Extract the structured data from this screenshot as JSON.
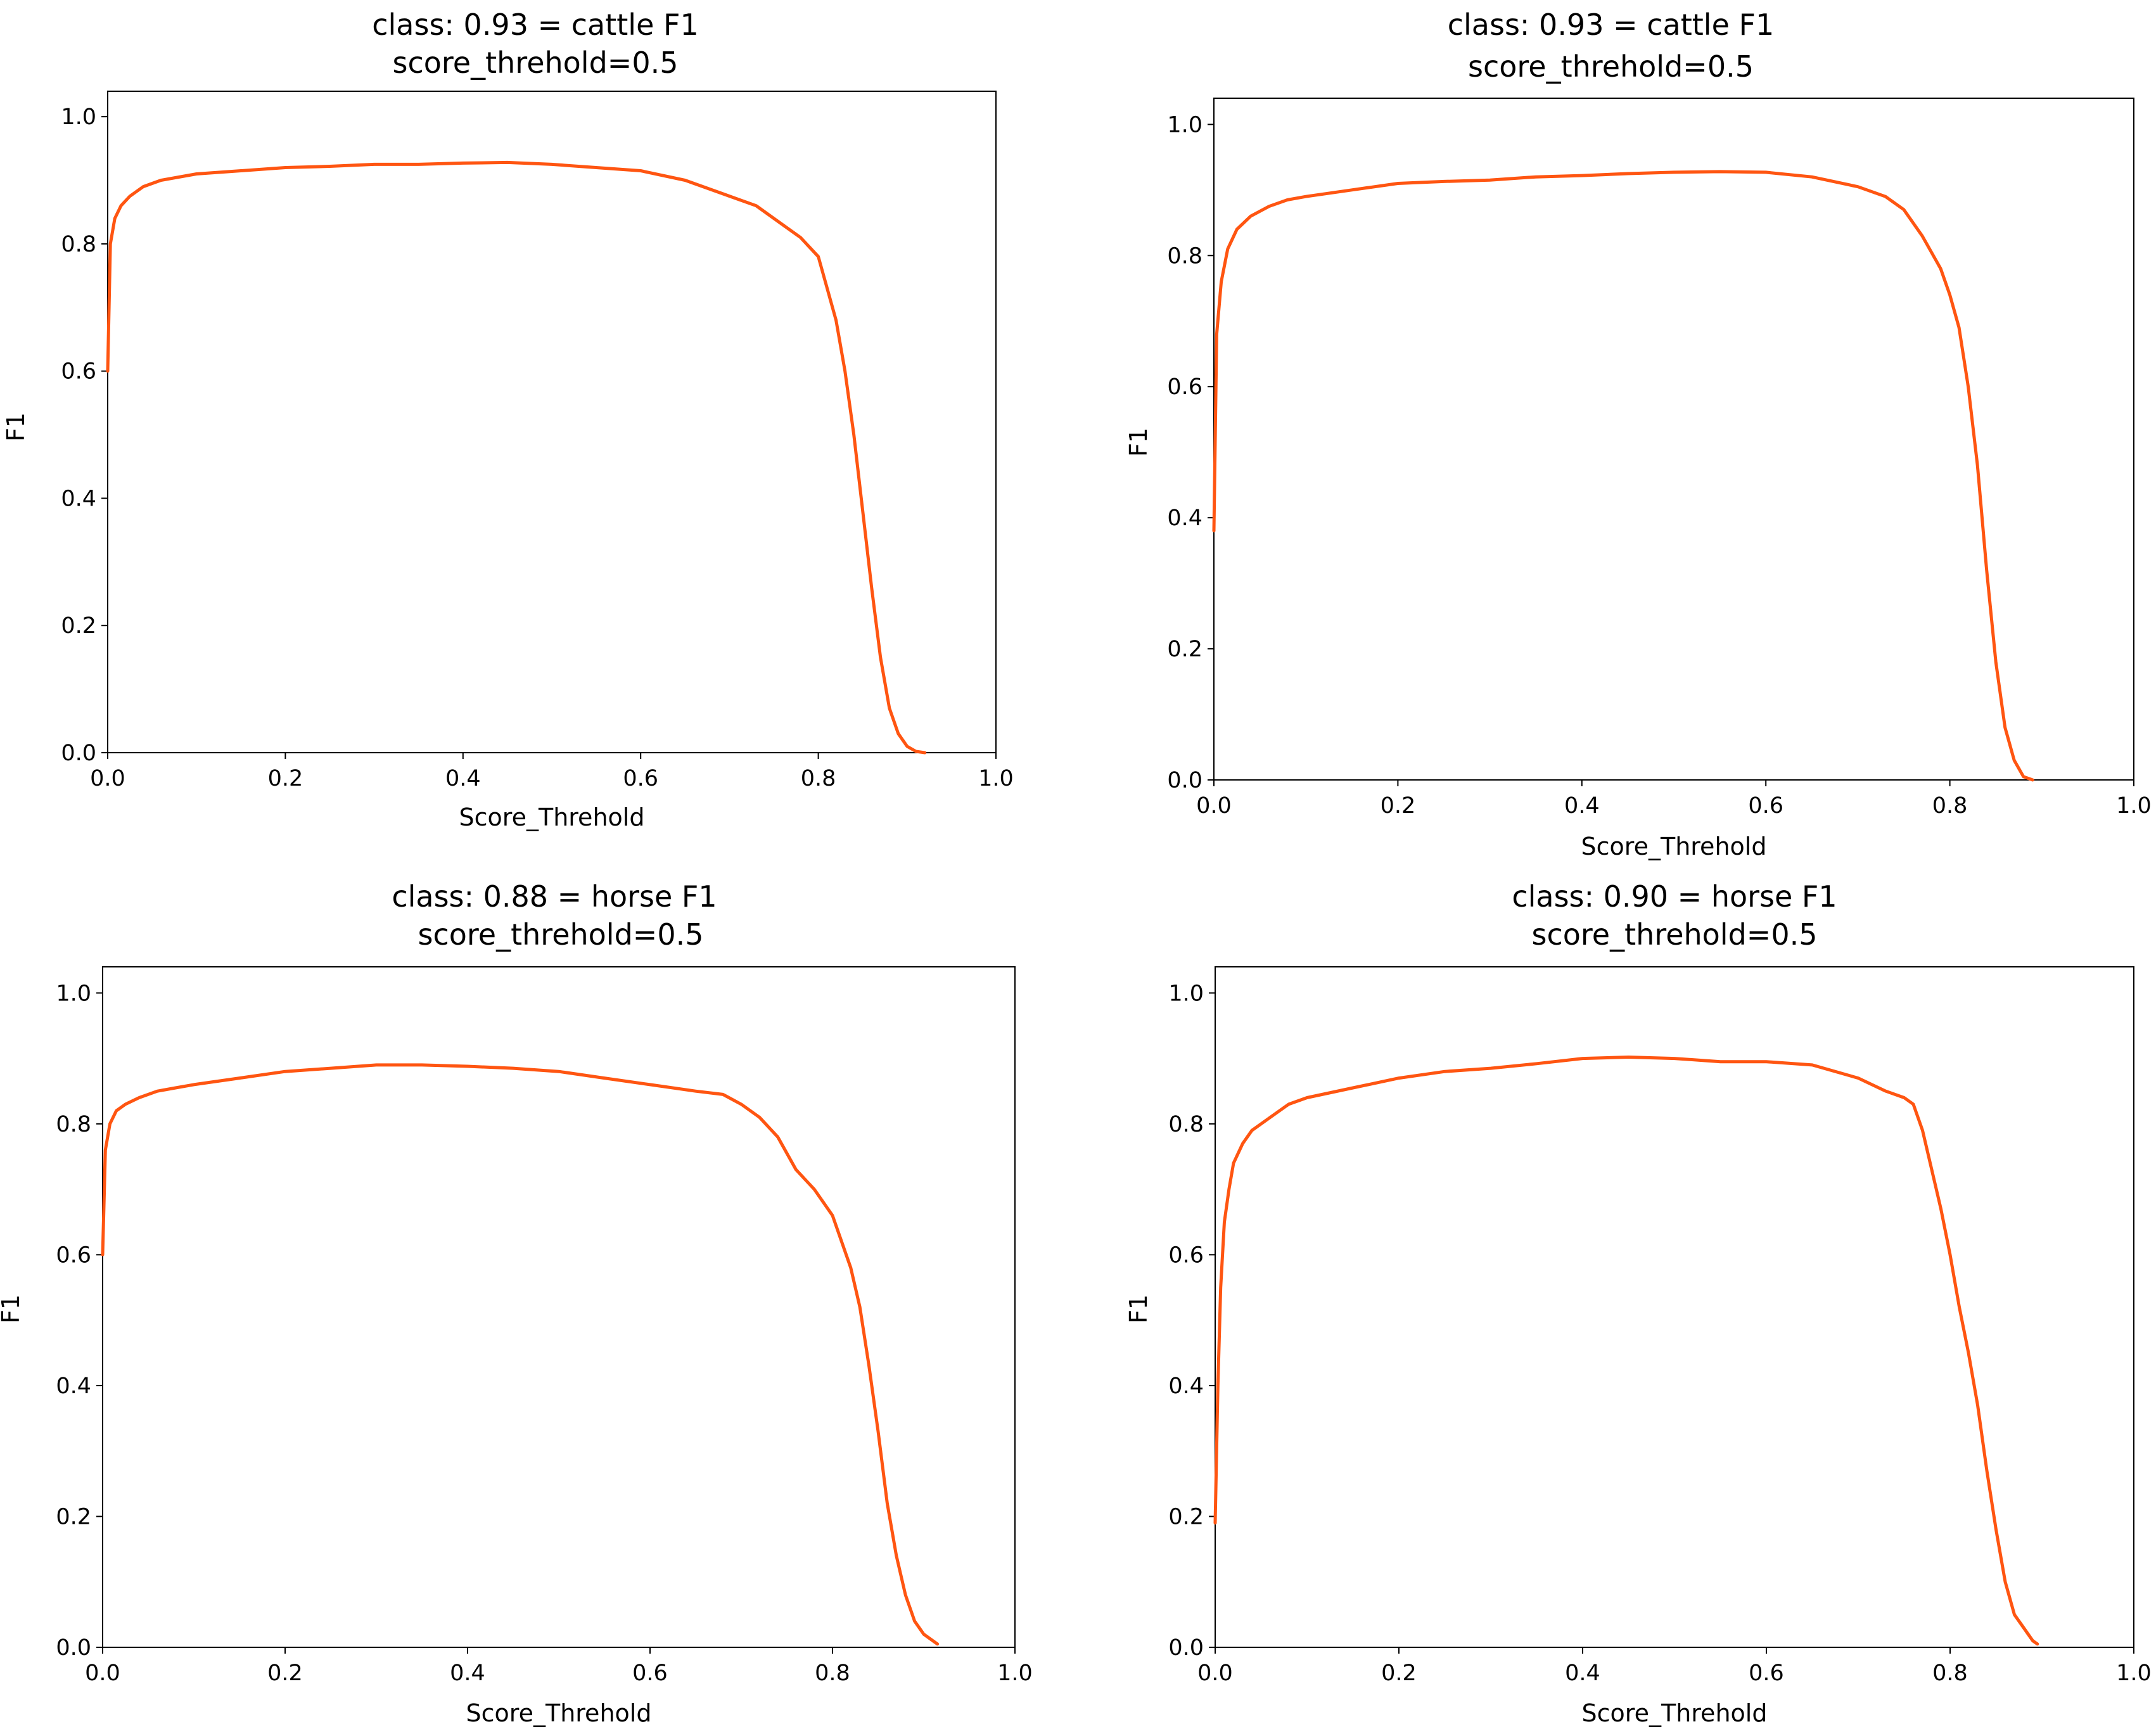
{
  "chart_data": [
    {
      "type": "line",
      "title": "class: 0.93 = cattle F1",
      "subtitle": "score_threhold=0.5",
      "xlabel": "Score_Threhold",
      "ylabel": "F1",
      "xlim": [
        0.0,
        1.0
      ],
      "ylim": [
        0.0,
        1.04
      ],
      "xticks": [
        "0.0",
        "0.2",
        "0.4",
        "0.6",
        "0.8",
        "1.0"
      ],
      "yticks": [
        "0.0",
        "0.2",
        "0.4",
        "0.6",
        "0.8",
        "1.0"
      ],
      "grid": false,
      "color": "#ff5511",
      "series": [
        {
          "x": [
            0.0,
            0.003,
            0.008,
            0.015,
            0.025,
            0.04,
            0.06,
            0.08,
            0.1,
            0.15,
            0.2,
            0.25,
            0.3,
            0.35,
            0.4,
            0.45,
            0.5,
            0.55,
            0.6,
            0.65,
            0.7,
            0.73,
            0.76,
            0.78,
            0.8,
            0.81,
            0.82,
            0.83,
            0.84,
            0.85,
            0.86,
            0.87,
            0.88,
            0.89,
            0.9,
            0.91,
            0.92
          ],
          "y": [
            0.6,
            0.8,
            0.84,
            0.86,
            0.875,
            0.89,
            0.9,
            0.905,
            0.91,
            0.915,
            0.92,
            0.922,
            0.925,
            0.925,
            0.927,
            0.928,
            0.925,
            0.92,
            0.915,
            0.9,
            0.875,
            0.86,
            0.83,
            0.81,
            0.78,
            0.73,
            0.68,
            0.6,
            0.5,
            0.38,
            0.26,
            0.15,
            0.07,
            0.03,
            0.01,
            0.002,
            0.0
          ]
        }
      ]
    },
    {
      "type": "line",
      "title": "class: 0.93 = cattle F1",
      "subtitle": "score_threhold=0.5",
      "xlabel": "Score_Threhold",
      "ylabel": "F1",
      "xlim": [
        0.0,
        1.0
      ],
      "ylim": [
        0.0,
        1.04
      ],
      "xticks": [
        "0.0",
        "0.2",
        "0.4",
        "0.6",
        "0.8",
        "1.0"
      ],
      "yticks": [
        "0.0",
        "0.2",
        "0.4",
        "0.6",
        "0.8",
        "1.0"
      ],
      "grid": false,
      "color": "#ff5511",
      "series": [
        {
          "x": [
            0.0,
            0.003,
            0.008,
            0.015,
            0.025,
            0.04,
            0.06,
            0.08,
            0.1,
            0.15,
            0.2,
            0.25,
            0.3,
            0.35,
            0.4,
            0.45,
            0.5,
            0.55,
            0.6,
            0.65,
            0.7,
            0.73,
            0.75,
            0.77,
            0.79,
            0.8,
            0.81,
            0.82,
            0.83,
            0.84,
            0.85,
            0.86,
            0.87,
            0.88,
            0.89
          ],
          "y": [
            0.38,
            0.68,
            0.76,
            0.81,
            0.84,
            0.86,
            0.875,
            0.885,
            0.89,
            0.9,
            0.91,
            0.913,
            0.915,
            0.92,
            0.922,
            0.925,
            0.927,
            0.928,
            0.927,
            0.92,
            0.905,
            0.89,
            0.87,
            0.83,
            0.78,
            0.74,
            0.69,
            0.6,
            0.48,
            0.32,
            0.18,
            0.08,
            0.03,
            0.005,
            0.0
          ]
        }
      ]
    },
    {
      "type": "line",
      "title": "class: 0.88 = horse F1",
      "subtitle": "score_threhold=0.5",
      "xlabel": "Score_Threhold",
      "ylabel": "F1",
      "xlim": [
        0.0,
        1.0
      ],
      "ylim": [
        0.0,
        1.04
      ],
      "xticks": [
        "0.0",
        "0.2",
        "0.4",
        "0.6",
        "0.8",
        "1.0"
      ],
      "yticks": [
        "0.0",
        "0.2",
        "0.4",
        "0.6",
        "0.8",
        "1.0"
      ],
      "grid": false,
      "color": "#ff5511",
      "series": [
        {
          "x": [
            0.0,
            0.003,
            0.008,
            0.015,
            0.025,
            0.04,
            0.06,
            0.08,
            0.1,
            0.15,
            0.2,
            0.25,
            0.3,
            0.35,
            0.4,
            0.45,
            0.5,
            0.55,
            0.6,
            0.65,
            0.68,
            0.7,
            0.72,
            0.74,
            0.76,
            0.78,
            0.8,
            0.82,
            0.83,
            0.84,
            0.85,
            0.86,
            0.87,
            0.88,
            0.89,
            0.9,
            0.91,
            0.915
          ],
          "y": [
            0.6,
            0.76,
            0.8,
            0.82,
            0.83,
            0.84,
            0.85,
            0.855,
            0.86,
            0.87,
            0.88,
            0.885,
            0.89,
            0.89,
            0.888,
            0.885,
            0.88,
            0.87,
            0.86,
            0.85,
            0.845,
            0.83,
            0.81,
            0.78,
            0.73,
            0.7,
            0.66,
            0.58,
            0.52,
            0.43,
            0.33,
            0.22,
            0.14,
            0.08,
            0.04,
            0.02,
            0.01,
            0.005
          ]
        }
      ]
    },
    {
      "type": "line",
      "title": "class: 0.90 = horse F1",
      "subtitle": "score_threhold=0.5",
      "xlabel": "Score_Threhold",
      "ylabel": "F1",
      "xlim": [
        0.0,
        1.0
      ],
      "ylim": [
        0.0,
        1.04
      ],
      "xticks": [
        "0.0",
        "0.2",
        "0.4",
        "0.6",
        "0.8",
        "1.0"
      ],
      "yticks": [
        "0.0",
        "0.2",
        "0.4",
        "0.6",
        "0.8",
        "1.0"
      ],
      "grid": false,
      "color": "#ff5511",
      "series": [
        {
          "x": [
            0.0,
            0.003,
            0.006,
            0.01,
            0.015,
            0.02,
            0.03,
            0.04,
            0.06,
            0.08,
            0.1,
            0.15,
            0.2,
            0.25,
            0.3,
            0.35,
            0.4,
            0.45,
            0.5,
            0.55,
            0.6,
            0.65,
            0.7,
            0.73,
            0.75,
            0.76,
            0.77,
            0.78,
            0.79,
            0.8,
            0.81,
            0.82,
            0.83,
            0.84,
            0.85,
            0.86,
            0.87,
            0.88,
            0.89,
            0.895
          ],
          "y": [
            0.19,
            0.4,
            0.55,
            0.65,
            0.7,
            0.74,
            0.77,
            0.79,
            0.81,
            0.83,
            0.84,
            0.855,
            0.87,
            0.88,
            0.885,
            0.892,
            0.9,
            0.902,
            0.9,
            0.895,
            0.895,
            0.89,
            0.87,
            0.85,
            0.84,
            0.83,
            0.79,
            0.73,
            0.67,
            0.6,
            0.52,
            0.45,
            0.37,
            0.27,
            0.18,
            0.1,
            0.05,
            0.03,
            0.01,
            0.005
          ]
        }
      ]
    }
  ]
}
